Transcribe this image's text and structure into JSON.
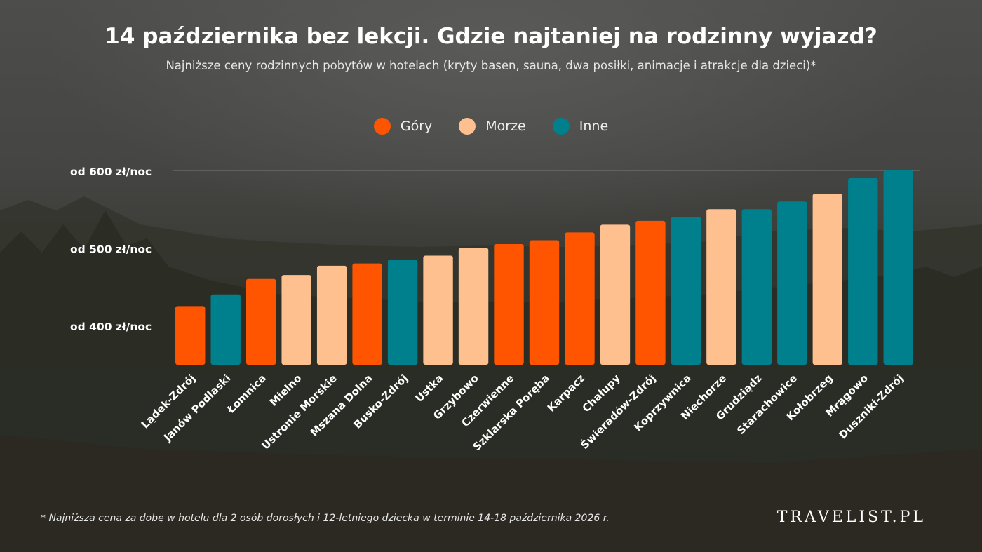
{
  "title": "14 października bez lekcji. Gdzie najtaniej na rodzinny wyjazd?",
  "subtitle": "Najniższe ceny rodzinnych pobytów w hotelach (kryty basen, sauna, dwa posiłki, animacje i atrakcje dla dzieci)*",
  "legend": [
    {
      "label": "Góry",
      "color": "#ff5500"
    },
    {
      "label": "Morze",
      "color": "#ffc090"
    },
    {
      "label": "Inne",
      "color": "#00808c"
    }
  ],
  "footnote": "* Najniższa cena za dobę w hotelu dla 2 osób dorosłych i 12-letniego dziecka w terminie 14-18 października 2026 r.",
  "brand": "TRAVELIST.PL",
  "chart_data": {
    "type": "bar",
    "categories": [
      "Lądek-Zdrój",
      "Janów Podlaski",
      "Łomnica",
      "Mielno",
      "Ustronie Morskie",
      "Mszana Dolna",
      "Busko-Zdrój",
      "Ustka",
      "Grzybowo",
      "Czerwienne",
      "Szklarska Poręba",
      "Karpacz",
      "Chałupy",
      "Świeradów-Zdrój",
      "Koprzywnica",
      "Niechorze",
      "Grudziądz",
      "Starachowice",
      "Kołobrzeg",
      "Mrągowo",
      "Duszniki-Zdrój"
    ],
    "values": [
      425,
      440,
      460,
      465,
      477,
      480,
      485,
      490,
      500,
      505,
      510,
      520,
      530,
      535,
      540,
      550,
      550,
      560,
      570,
      590,
      600
    ],
    "groups": [
      "Góry",
      "Inne",
      "Góry",
      "Morze",
      "Morze",
      "Góry",
      "Inne",
      "Morze",
      "Morze",
      "Góry",
      "Góry",
      "Góry",
      "Morze",
      "Góry",
      "Inne",
      "Morze",
      "Inne",
      "Inne",
      "Morze",
      "Inne",
      "Inne"
    ],
    "y_ticks": [
      {
        "value": 400,
        "label": "od 400 zł/noc"
      },
      {
        "value": 500,
        "label": "od 500 zł/noc"
      },
      {
        "value": 600,
        "label": "od 600 zł/noc"
      }
    ],
    "ylim": [
      350,
      600
    ],
    "grid": true,
    "legend_position": "top-center"
  }
}
